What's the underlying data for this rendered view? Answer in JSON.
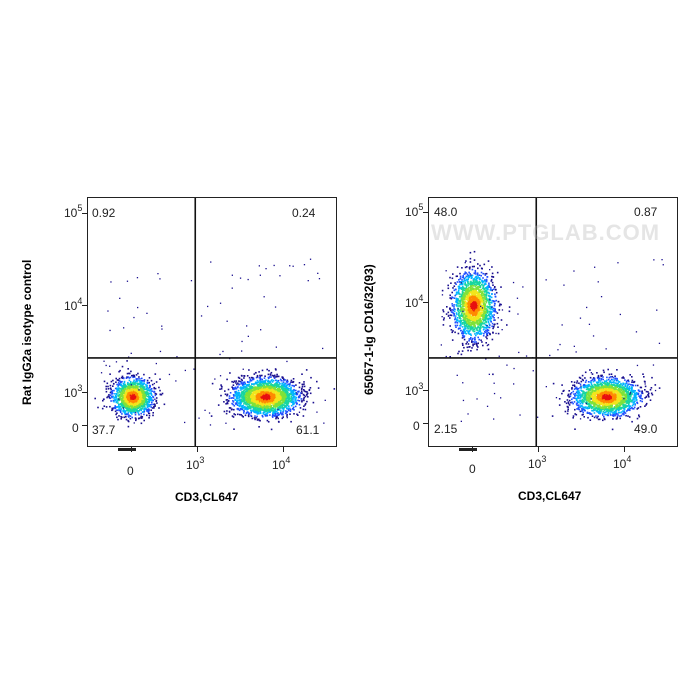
{
  "chart_data": [
    {
      "type": "scatter",
      "style": "flow-cytometry pseudocolor density dot plot",
      "xlabel": "CD3,CL647",
      "ylabel": "Rat IgG2a isotype control",
      "x_ticks": [
        {
          "base": "0",
          "exp": ""
        },
        {
          "base": "10",
          "exp": "3"
        },
        {
          "base": "10",
          "exp": "4"
        }
      ],
      "y_ticks": [
        {
          "base": "0",
          "exp": ""
        },
        {
          "base": "10",
          "exp": "3"
        },
        {
          "base": "10",
          "exp": "4"
        },
        {
          "base": "10",
          "exp": "5"
        }
      ],
      "quadrants": {
        "upper_left": "0.92",
        "upper_right": "0.24",
        "lower_left": "37.7",
        "lower_right": "61.1"
      },
      "gate_x": 750,
      "gate_y": 2500,
      "populations": [
        {
          "name_on_chart": "",
          "center_x": 0,
          "center_y": 500,
          "share_percent": 37.7
        },
        {
          "name_on_chart": "",
          "center_x": 6000,
          "center_y": 500,
          "share_percent": 61.1
        }
      ]
    },
    {
      "type": "scatter",
      "style": "flow-cytometry pseudocolor density dot plot",
      "xlabel": "CD3,CL647",
      "ylabel": "65057-1-Ig CD16/32(93)",
      "watermark": "WWW.PTGLAB.COM",
      "x_ticks": [
        {
          "base": "0",
          "exp": ""
        },
        {
          "base": "10",
          "exp": "3"
        },
        {
          "base": "10",
          "exp": "4"
        }
      ],
      "y_ticks": [
        {
          "base": "0",
          "exp": ""
        },
        {
          "base": "10",
          "exp": "3"
        },
        {
          "base": "10",
          "exp": "4"
        },
        {
          "base": "10",
          "exp": "5"
        }
      ],
      "quadrants": {
        "upper_left": "48.0",
        "upper_right": "0.87",
        "lower_left": "2.15",
        "lower_right": "49.0"
      },
      "gate_x": 750,
      "gate_y": 2500,
      "populations": [
        {
          "name_on_chart": "",
          "center_x": 0,
          "center_y": 10000,
          "share_percent": 48.0
        },
        {
          "name_on_chart": "",
          "center_x": 6000,
          "center_y": 500,
          "share_percent": 49.0
        }
      ]
    }
  ],
  "colors": {
    "density_scale": [
      "#1a0f8f",
      "#1f4fff",
      "#00b4ff",
      "#18d6a0",
      "#7ee23a",
      "#f2e51c",
      "#ff8a00",
      "#e81010"
    ],
    "gate_line": "#111111"
  }
}
